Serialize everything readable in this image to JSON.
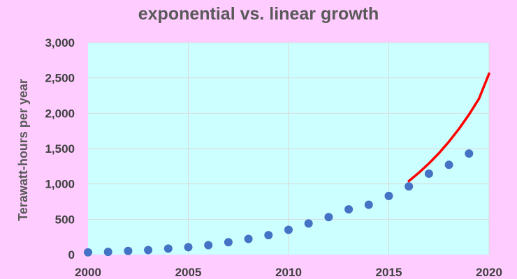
{
  "chart_data": {
    "type": "scatter",
    "title": "exponential vs. linear growth",
    "xlabel": "",
    "ylabel": "Terawatt-hours per year",
    "xlim": [
      2000,
      2020
    ],
    "ylim": [
      0,
      3000
    ],
    "x_ticks": [
      "2000",
      "2005",
      "2010",
      "2015",
      "2020"
    ],
    "y_ticks": [
      "0",
      "500",
      "1,000",
      "1,500",
      "2,000",
      "2,500",
      "3,000"
    ],
    "grid": true,
    "legend": "none",
    "series": [
      {
        "type": "scatter",
        "color": "#4472c4",
        "x": [
          2000,
          2001,
          2002,
          2003,
          2004,
          2005,
          2006,
          2007,
          2008,
          2009,
          2010,
          2011,
          2012,
          2013,
          2014,
          2015,
          2016,
          2017,
          2018,
          2019
        ],
        "y": [
          32,
          38,
          52,
          64,
          85,
          105,
          133,
          175,
          222,
          275,
          350,
          440,
          530,
          640,
          705,
          830,
          965,
          1145,
          1270,
          1430
        ]
      },
      {
        "type": "line",
        "color": "#ff0000",
        "x": [
          2016,
          2016.5,
          2017,
          2017.5,
          2018,
          2018.5,
          2019,
          2019.5,
          2020
        ],
        "y": [
          1040,
          1158,
          1289,
          1435,
          1598,
          1779,
          1981,
          2206,
          2560
        ]
      }
    ],
    "colors": {
      "background": "#ffccff",
      "plot_area": "#ccffff",
      "grid": "#d9d9d9"
    }
  }
}
